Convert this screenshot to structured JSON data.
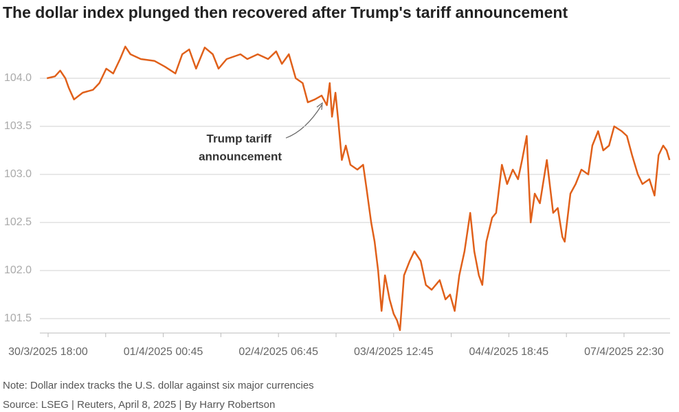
{
  "chart_data": {
    "type": "line",
    "title": "The dollar index plunged then recovered after Trump's tariff announcement",
    "annotation": [
      "Trump tariff",
      "announcement"
    ],
    "note": "Note: Dollar index tracks the U.S. dollar against six major currencies",
    "source": "Source: LSEG | Reuters, April 8, 2025 | By Harry Robertson",
    "xlim": [
      -0.1,
      10.9
    ],
    "xticks": [
      {
        "value": 0,
        "label": "30/3/2025 18:00"
      },
      {
        "value": 2,
        "label": "01/4/2025 00:45"
      },
      {
        "value": 4,
        "label": "02/4/2025 06:45"
      },
      {
        "value": 6,
        "label": "03/4/2025 12:45"
      },
      {
        "value": 8,
        "label": "04/4/2025 18:45"
      },
      {
        "value": 10,
        "label": "07/4/2025 22:30"
      }
    ],
    "xminorticks": [
      1,
      3,
      5,
      7,
      9
    ],
    "ylim": [
      101.35,
      104.35
    ],
    "yticks": [
      {
        "value": 101.5,
        "label": "101.5"
      },
      {
        "value": 102.0,
        "label": "102.0"
      },
      {
        "value": 102.5,
        "label": "102.5"
      },
      {
        "value": 103.0,
        "label": "103.0"
      },
      {
        "value": 103.5,
        "label": "103.5"
      },
      {
        "value": 104.0,
        "label": "104.0"
      }
    ],
    "grid": true,
    "series": [
      {
        "color": "#e0601a",
        "x": [
          -0.02,
          0.12,
          0.21,
          0.3,
          0.36,
          0.45,
          0.6,
          0.78,
          0.89,
          1.01,
          1.13,
          1.25,
          1.34,
          1.43,
          1.61,
          1.85,
          2.03,
          2.21,
          2.33,
          2.45,
          2.57,
          2.72,
          2.86,
          2.96,
          3.1,
          3.34,
          3.46,
          3.64,
          3.82,
          3.96,
          4.06,
          4.18,
          4.3,
          4.42,
          4.51,
          4.63,
          4.75,
          4.84,
          4.89,
          4.93,
          4.99,
          5.04,
          5.1,
          5.17,
          5.25,
          5.37,
          5.47,
          5.53,
          5.61,
          5.67,
          5.73,
          5.79,
          5.85,
          5.93,
          6.0,
          6.06,
          6.11,
          6.18,
          6.28,
          6.36,
          6.47,
          6.56,
          6.66,
          6.8,
          6.9,
          6.98,
          7.06,
          7.14,
          7.23,
          7.33,
          7.4,
          7.48,
          7.54,
          7.61,
          7.71,
          7.78,
          7.88,
          7.97,
          8.07,
          8.16,
          8.23,
          8.31,
          8.38,
          8.45,
          8.54,
          8.66,
          8.77,
          8.85,
          8.93,
          8.97,
          9.07,
          9.16,
          9.26,
          9.38,
          9.45,
          9.55,
          9.64,
          9.74,
          9.83,
          9.96,
          10.05,
          10.14,
          10.24,
          10.32,
          10.44,
          10.53,
          10.6,
          10.68,
          10.74,
          10.79
        ],
        "values": [
          104.0,
          104.02,
          104.08,
          104.0,
          103.9,
          103.78,
          103.85,
          103.88,
          103.95,
          104.1,
          104.05,
          104.2,
          104.33,
          104.25,
          104.2,
          104.18,
          104.12,
          104.05,
          104.25,
          104.3,
          104.1,
          104.32,
          104.25,
          104.1,
          104.2,
          104.25,
          104.2,
          104.25,
          104.2,
          104.28,
          104.15,
          104.25,
          104.0,
          103.95,
          103.75,
          103.78,
          103.82,
          103.72,
          103.95,
          103.6,
          103.85,
          103.55,
          103.15,
          103.3,
          103.1,
          103.05,
          103.1,
          102.85,
          102.5,
          102.3,
          102.0,
          101.58,
          101.95,
          101.7,
          101.55,
          101.48,
          101.38,
          101.95,
          102.1,
          102.2,
          102.1,
          101.85,
          101.8,
          101.9,
          101.7,
          101.75,
          101.58,
          101.95,
          102.2,
          102.6,
          102.2,
          101.95,
          101.85,
          102.3,
          102.55,
          102.6,
          103.1,
          102.9,
          103.05,
          102.95,
          103.15,
          103.4,
          102.5,
          102.8,
          102.7,
          103.15,
          102.6,
          102.65,
          102.35,
          102.3,
          102.8,
          102.9,
          103.05,
          103.0,
          103.3,
          103.45,
          103.25,
          103.3,
          103.5,
          103.45,
          103.4,
          103.2,
          103.0,
          102.9,
          102.95,
          102.78,
          103.2,
          103.3,
          103.25,
          103.15
        ]
      }
    ]
  }
}
